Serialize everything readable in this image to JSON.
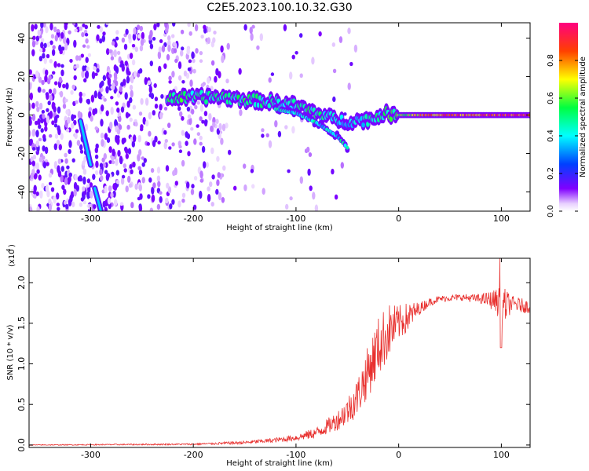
{
  "title": "C2E5.2023.100.10.32.G30",
  "chart_data": [
    {
      "type": "heatmap",
      "xlabel": "Height of straight line (km)",
      "ylabel": "Frequency (Hz)",
      "xlim": [
        -360,
        128
      ],
      "ylim": [
        -50,
        48
      ],
      "xticks": [
        -300,
        -200,
        -100,
        0,
        100
      ],
      "yticks": [
        -40,
        -20,
        0,
        20,
        40
      ],
      "colorbar": {
        "label": "Normalized spectral amplitude",
        "range": [
          0,
          1
        ],
        "ticks": [
          "0.0",
          "0.2",
          "0.4",
          "0.6",
          "0.8"
        ]
      },
      "ridge": {
        "x": [
          -225,
          -200,
          -175,
          -150,
          -125,
          -100,
          -85,
          -70,
          -55,
          -40,
          -25,
          -15,
          -5,
          0,
          25,
          50,
          75,
          95,
          128
        ],
        "y": [
          9,
          9,
          9.5,
          8,
          7,
          5,
          2,
          -1,
          -3,
          -3,
          -2,
          1,
          0,
          0,
          0,
          0,
          0,
          0,
          0
        ],
        "amplitude": [
          0.55,
          0.5,
          0.45,
          0.5,
          0.45,
          0.45,
          0.5,
          0.45,
          0.35,
          0.4,
          0.45,
          0.5,
          0.55,
          0.6,
          0.8,
          0.85,
          0.85,
          0.85,
          0.95
        ]
      },
      "streaks": [
        {
          "x": [
            -310,
            -300
          ],
          "y": [
            -3,
            -26
          ]
        },
        {
          "x": [
            -296,
            -290
          ],
          "y": [
            -38,
            -50
          ]
        }
      ],
      "lower_branch": {
        "x": [
          -120,
          -100,
          -80,
          -60,
          -50
        ],
        "y": [
          3,
          1,
          -4,
          -11,
          -17
        ]
      }
    },
    {
      "type": "line",
      "xlabel": "Height of straight line (km)",
      "ylabel": "SNR (10 * v/v)",
      "y_exponent_label": "(x10",
      "y_exponent": "4",
      "xlim": [
        -360,
        128
      ],
      "ylim": [
        -0.03,
        2.3
      ],
      "xticks": [
        -300,
        -200,
        -100,
        0,
        100
      ],
      "yticks": [
        "0.0",
        "0.5",
        "1.0",
        "1.5",
        "2.0"
      ],
      "line_color": "#e8302e",
      "x": [
        -360,
        -200,
        -150,
        -120,
        -100,
        -80,
        -60,
        -50,
        -40,
        -30,
        -20,
        -10,
        0,
        10,
        20,
        30,
        40,
        60,
        80,
        95,
        100,
        110,
        128
      ],
      "y": [
        0.0,
        0.01,
        0.03,
        0.06,
        0.09,
        0.15,
        0.3,
        0.42,
        0.6,
        0.9,
        1.2,
        1.4,
        1.5,
        1.58,
        1.68,
        1.76,
        1.8,
        1.82,
        1.8,
        1.78,
        1.7,
        1.74,
        1.7
      ],
      "noise": [
        0.005,
        0.01,
        0.02,
        0.03,
        0.04,
        0.07,
        0.12,
        0.18,
        0.24,
        0.32,
        0.38,
        0.35,
        0.22,
        0.18,
        0.08,
        0.05,
        0.04,
        0.04,
        0.06,
        0.14,
        0.28,
        0.1,
        0.08
      ]
    }
  ]
}
